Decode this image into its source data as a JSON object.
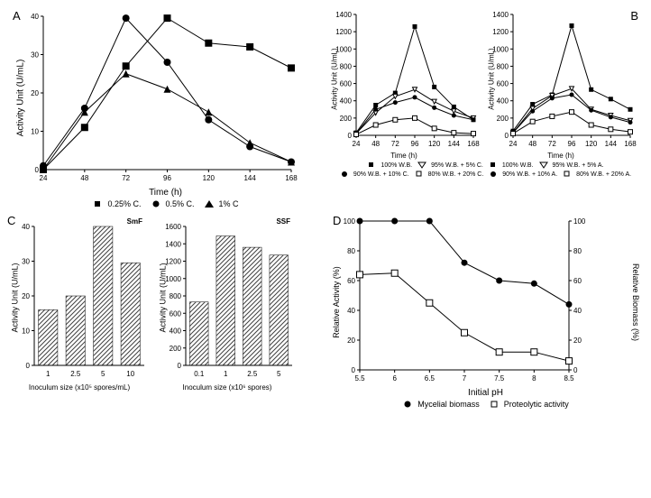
{
  "panelA": {
    "label": "A",
    "type": "line",
    "xlabel": "Time (h)",
    "ylabel": "Activity Unit (U/mL)",
    "xvalues": [
      24,
      48,
      72,
      96,
      120,
      144,
      168
    ],
    "ylim": [
      0,
      40
    ],
    "ytick_step": 10,
    "series": [
      {
        "name": "0.25% C.",
        "marker": "square-filled",
        "y": [
          0,
          11,
          27,
          39.5,
          33,
          32,
          26.5
        ]
      },
      {
        "name": "0.5% C.",
        "marker": "circle-filled",
        "y": [
          1,
          16,
          39.5,
          28,
          13,
          6,
          2
        ]
      },
      {
        "name": "1% C.",
        "marker": "triangle-filled",
        "y": [
          0,
          15,
          25,
          21,
          15,
          7,
          2
        ]
      }
    ],
    "legend_items": [
      "0.25% C.",
      "0.5% C.",
      "1% C"
    ]
  },
  "panelB": {
    "label": "B",
    "type": "line",
    "xlabel": "Time (h)",
    "ylabel": "Activity Unit (U/mL)",
    "xvalues": [
      24,
      48,
      72,
      96,
      120,
      144,
      168
    ],
    "ylim": [
      0,
      1400
    ],
    "ytick_step": 200,
    "left": {
      "series": [
        {
          "name": "100% W.B.",
          "marker": "square-filled",
          "y": [
            30,
            350,
            490,
            1260,
            560,
            330,
            180
          ]
        },
        {
          "name": "95% W.B. + 5% C.",
          "marker": "triangle-open",
          "y": [
            20,
            260,
            450,
            530,
            390,
            280,
            200
          ]
        },
        {
          "name": "90% W.B. + 10% C.",
          "marker": "circle-filled",
          "y": [
            20,
            300,
            380,
            440,
            320,
            230,
            180
          ]
        },
        {
          "name": "80% W.B. + 20% C.",
          "marker": "square-open",
          "y": [
            10,
            120,
            180,
            200,
            80,
            30,
            20
          ]
        }
      ],
      "legend": [
        "100% W.B.",
        "95% W.B. + 5% C.",
        "90% W.B. + 10% C.",
        "80% W.B. + 20% C."
      ]
    },
    "right": {
      "series": [
        {
          "name": "100% W.B.",
          "marker": "square-filled",
          "y": [
            50,
            360,
            470,
            1270,
            530,
            420,
            300
          ]
        },
        {
          "name": "95% W.B. + 5% A.",
          "marker": "triangle-open",
          "y": [
            30,
            310,
            460,
            540,
            300,
            230,
            170
          ]
        },
        {
          "name": "90% W.B. + 10% A.",
          "marker": "circle-filled",
          "y": [
            30,
            280,
            430,
            470,
            290,
            210,
            150
          ]
        },
        {
          "name": "80% W.B. + 20% A.",
          "marker": "square-open",
          "y": [
            20,
            160,
            220,
            270,
            120,
            70,
            40
          ]
        }
      ],
      "legend": [
        "100% W.B.",
        "95% W.B. + 5% A.",
        "90% W.B. + 10% A.",
        "80% W.B. + 20% A."
      ]
    }
  },
  "panelC": {
    "label": "C",
    "type": "bar",
    "ylabel": "Activity Unit (U/mL)",
    "left": {
      "title": "SmF",
      "xlabel": "Inoculum size (x10⁵ spores/mL)",
      "categories": [
        "1",
        "2.5",
        "5",
        "10"
      ],
      "values": [
        16,
        20,
        40,
        29.5
      ],
      "ylim": [
        0,
        40
      ],
      "ytick_step": 10
    },
    "right": {
      "title": "SSF",
      "xlabel": "Inoculum size (x10⁶ spores)",
      "categories": [
        "0.1",
        "1",
        "2.5",
        "5"
      ],
      "values": [
        730,
        1490,
        1360,
        1270
      ],
      "ylim": [
        0,
        1600
      ],
      "ytick_step": 200
    },
    "bar_fill": "hatched",
    "bar_color": "#808080"
  },
  "panelD": {
    "label": "D",
    "type": "line",
    "xlabel": "Initial pH",
    "ylabel_left": "Relative Activity (%)",
    "ylabel_right": "Relative Biomass (%)",
    "xvalues": [
      5.5,
      6.0,
      6.5,
      7.0,
      7.5,
      8.0,
      8.5
    ],
    "ylim": [
      0,
      100
    ],
    "ytick_step": 20,
    "series": [
      {
        "name": "Mycelial biomass",
        "marker": "circle-filled",
        "y": [
          100,
          100,
          100,
          72,
          60,
          58,
          44
        ]
      },
      {
        "name": "Proteolytic activity",
        "marker": "square-open",
        "y": [
          64,
          65,
          45,
          25,
          12,
          12,
          6
        ]
      }
    ],
    "legend": [
      "Mycelial biomass",
      "Proteolytic activity"
    ]
  },
  "colors": {
    "stroke": "#000000",
    "background": "#ffffff"
  }
}
